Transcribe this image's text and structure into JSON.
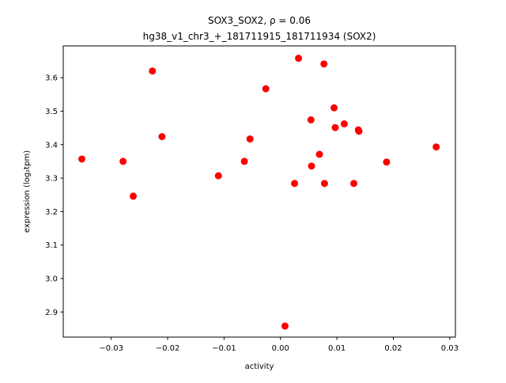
{
  "chart_data": {
    "type": "scatter",
    "title_line1": "SOX3_SOX2, ρ = 0.06",
    "title_line2": "hg38_v1_chr3_+_181711915_181711934 (SOX2)",
    "xlabel": "activity",
    "ylabel": "expression (log₂tpm)",
    "xlim": [
      -0.0385,
      0.031
    ],
    "ylim": [
      2.825,
      3.695
    ],
    "grid": false,
    "point_color": "#ff0000",
    "x_ticks": [
      -0.03,
      -0.02,
      -0.01,
      0.0,
      0.01,
      0.02,
      0.03
    ],
    "x_tick_labels": [
      "−0.03",
      "−0.02",
      "−0.01",
      "0.00",
      "0.01",
      "0.02",
      "0.03"
    ],
    "y_ticks": [
      2.9,
      3.0,
      3.1,
      3.2,
      3.3,
      3.4,
      3.5,
      3.6
    ],
    "y_tick_labels": [
      "2.9",
      "3.0",
      "3.1",
      "3.2",
      "3.3",
      "3.4",
      "3.5",
      "3.6"
    ],
    "points": [
      {
        "x": -0.0352,
        "y": 3.357
      },
      {
        "x": -0.0279,
        "y": 3.35
      },
      {
        "x": -0.0261,
        "y": 3.246
      },
      {
        "x": -0.0227,
        "y": 3.62
      },
      {
        "x": -0.021,
        "y": 3.424
      },
      {
        "x": -0.011,
        "y": 3.307
      },
      {
        "x": -0.0064,
        "y": 3.35
      },
      {
        "x": -0.0054,
        "y": 3.417
      },
      {
        "x": -0.0026,
        "y": 3.567
      },
      {
        "x": 0.0008,
        "y": 2.858
      },
      {
        "x": 0.0025,
        "y": 3.284
      },
      {
        "x": 0.0032,
        "y": 3.658
      },
      {
        "x": 0.0054,
        "y": 3.474
      },
      {
        "x": 0.0055,
        "y": 3.336
      },
      {
        "x": 0.0069,
        "y": 3.371
      },
      {
        "x": 0.0077,
        "y": 3.641
      },
      {
        "x": 0.0078,
        "y": 3.284
      },
      {
        "x": 0.0095,
        "y": 3.51
      },
      {
        "x": 0.0097,
        "y": 3.451
      },
      {
        "x": 0.0113,
        "y": 3.462
      },
      {
        "x": 0.013,
        "y": 3.284
      },
      {
        "x": 0.0138,
        "y": 3.444
      },
      {
        "x": 0.0139,
        "y": 3.44
      },
      {
        "x": 0.0188,
        "y": 3.348
      },
      {
        "x": 0.0276,
        "y": 3.393
      }
    ]
  }
}
